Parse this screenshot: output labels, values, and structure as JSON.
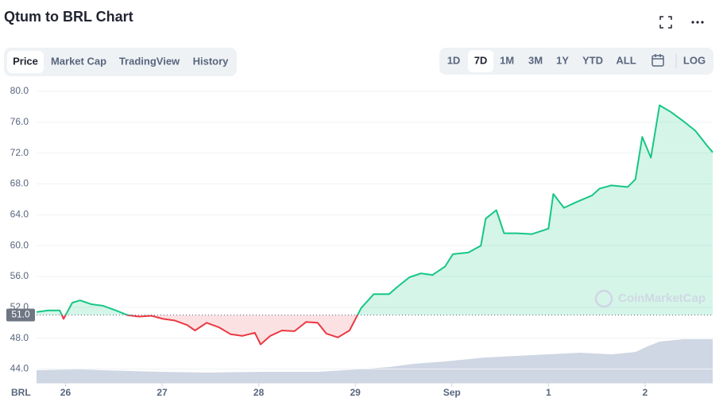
{
  "header": {
    "title": "Qtum to BRL Chart"
  },
  "tabs": [
    "Price",
    "Market Cap",
    "TradingView",
    "History"
  ],
  "ranges": [
    "1D",
    "7D",
    "1M",
    "3M",
    "1Y",
    "YTD",
    "ALL"
  ],
  "log": "LOG",
  "chart_data": {
    "type": "line",
    "x_label": "BRL",
    "watermark": "CoinMarketCap",
    "x": [
      -0.3,
      -0.18,
      -0.06,
      -0.02,
      0.07,
      0.15,
      0.27,
      0.39,
      0.52,
      0.64,
      0.76,
      0.89,
      1.01,
      1.13,
      1.26,
      1.34,
      1.46,
      1.59,
      1.71,
      1.83,
      1.96,
      2.02,
      2.12,
      2.24,
      2.37,
      2.49,
      2.61,
      2.7,
      2.82,
      2.94,
      3.06,
      3.19,
      3.35,
      3.43,
      3.56,
      3.68,
      3.8,
      3.93,
      4.01,
      4.17,
      4.3,
      4.35,
      4.46,
      4.54,
      4.67,
      4.83,
      5.0,
      5.05,
      5.16,
      5.28,
      5.45,
      5.53,
      5.65,
      5.82,
      5.9,
      5.97,
      6.06,
      6.15,
      6.27,
      6.39,
      6.52,
      6.64,
      6.7
    ],
    "series": [
      {
        "name": "Price",
        "color": "#16c784",
        "color_below": "#ea3943",
        "values": [
          51.4,
          51.6,
          51.6,
          50.5,
          52.6,
          52.9,
          52.4,
          52.2,
          51.6,
          51.0,
          50.8,
          50.9,
          50.5,
          50.3,
          49.7,
          49.0,
          50.0,
          49.4,
          48.5,
          48.3,
          48.7,
          47.2,
          48.3,
          49.0,
          48.9,
          50.1,
          50.0,
          48.6,
          48.1,
          49.0,
          51.9,
          53.7,
          53.7,
          54.6,
          55.9,
          56.4,
          56.2,
          57.3,
          58.9,
          59.1,
          60.0,
          63.5,
          64.6,
          61.6,
          61.6,
          61.5,
          62.2,
          66.7,
          64.9,
          65.6,
          66.5,
          67.4,
          67.8,
          67.6,
          68.6,
          74.1,
          71.4,
          78.2,
          77.3,
          76.2,
          74.9,
          73.0,
          72.1
        ]
      }
    ],
    "reference": {
      "value": 51,
      "label": "51.0"
    },
    "xlim": [
      -0.3,
      6.7
    ],
    "xticks": [
      {
        "value": 0,
        "label": "26"
      },
      {
        "value": 1,
        "label": "27"
      },
      {
        "value": 2,
        "label": "28"
      },
      {
        "value": 3,
        "label": "29"
      },
      {
        "value": 4,
        "label": "Sep"
      },
      {
        "value": 5,
        "label": "1"
      },
      {
        "value": 6,
        "label": "2"
      }
    ],
    "ylim": [
      42.2,
      80
    ],
    "yticks": [
      {
        "value": 44,
        "label": "44.0"
      },
      {
        "value": 48,
        "label": "48.0"
      },
      {
        "value": 52,
        "label": "52.0"
      },
      {
        "value": 56,
        "label": "56.0"
      },
      {
        "value": 60,
        "label": "60.0"
      },
      {
        "value": 64,
        "label": "64.0"
      },
      {
        "value": 68,
        "label": "68.0"
      },
      {
        "value": 72,
        "label": "72.0"
      },
      {
        "value": 76,
        "label": "76.0"
      },
      {
        "value": 80,
        "label": "80.0"
      }
    ],
    "grid": true
  }
}
